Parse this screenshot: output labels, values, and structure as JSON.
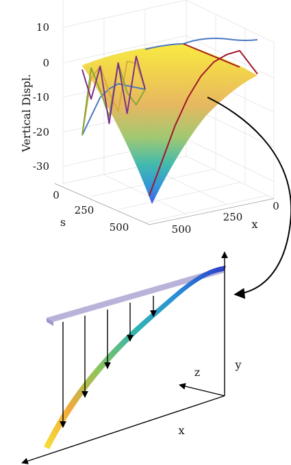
{
  "chart_data": [
    {
      "type": "surface",
      "title": "",
      "zlabel": "Vertical Displ.",
      "xlabel": "x",
      "ylabel": "s",
      "z_ticks": [
        "10",
        "0",
        "-10",
        "-20",
        "-30"
      ],
      "s_ticks": [
        "0",
        "250",
        "500"
      ],
      "x_ticks": [
        "500",
        "250",
        "0"
      ],
      "zlim": [
        -35,
        10
      ],
      "xlim": [
        0,
        600
      ],
      "slim": [
        0,
        600
      ],
      "grid": true,
      "colormap": [
        "#3f4fe0",
        "#2a8fd8",
        "#29b9a8",
        "#8fca6a",
        "#e8c24a",
        "#f7e83a"
      ],
      "tip_min_z": -34,
      "series": [
        {
          "color": "#4a78c0",
          "values": [
            -10,
            -5,
            0,
            2,
            3,
            2,
            1,
            0
          ]
        },
        {
          "color": "#d9a93a",
          "values": [
            -10,
            6,
            9,
            1,
            -5,
            9,
            8,
            0
          ]
        },
        {
          "color": "#82a83a",
          "values": [
            -10,
            9,
            2,
            -6,
            9,
            0,
            -4,
            0
          ]
        },
        {
          "color": "#7b2f8c",
          "values": [
            9,
            0,
            9,
            -8,
            9,
            -6,
            10,
            0
          ]
        },
        {
          "color": "#a0162a",
          "values": [
            -34,
            -25,
            -16,
            -9,
            -4,
            -1,
            0,
            0
          ]
        }
      ]
    },
    {
      "type": "diagram",
      "axis_labels": {
        "x": "x",
        "y": "y",
        "z": "z"
      },
      "beam_colors": [
        "#f5e13a",
        "#f2a93a",
        "#8fc45a",
        "#2fb3b0",
        "#2a8fd8",
        "#2d3cc7"
      ],
      "load_bar_color": "#b9b3da",
      "load_arrows": 6
    }
  ]
}
